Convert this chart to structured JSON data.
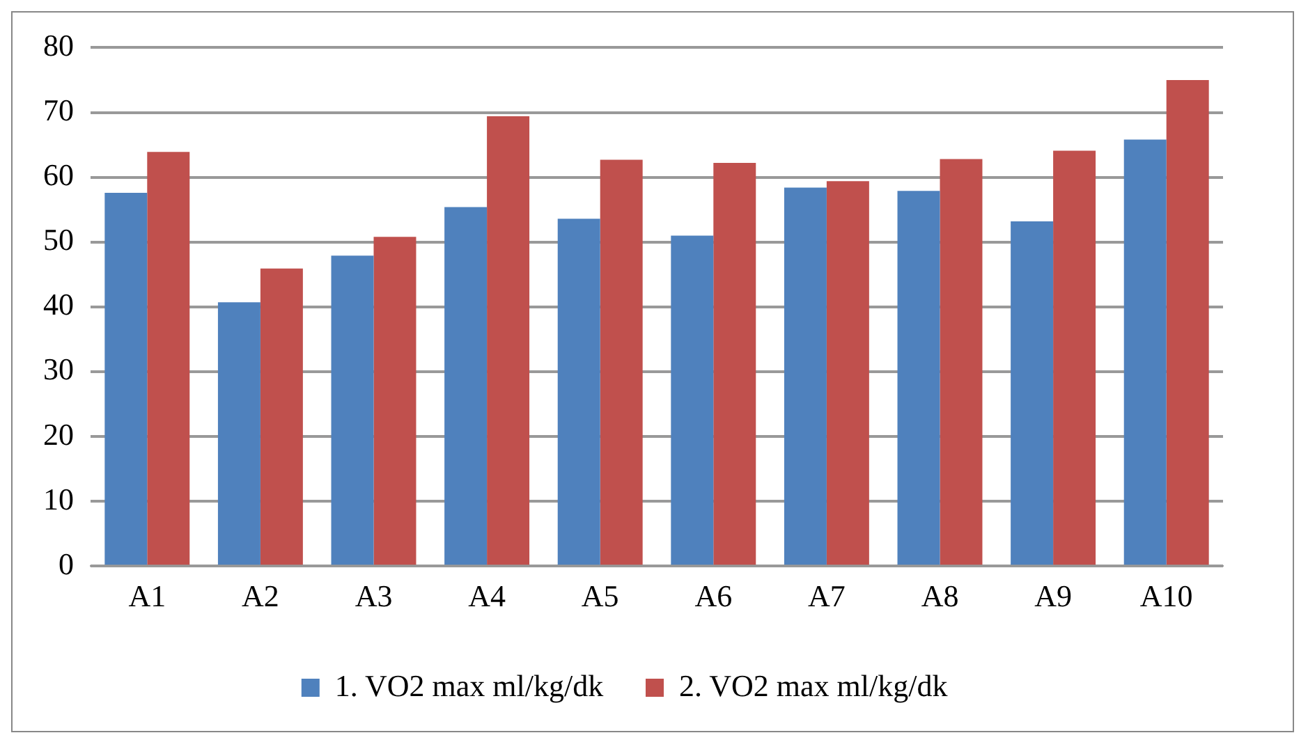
{
  "chart_data": {
    "type": "bar",
    "categories": [
      "A1",
      "A2",
      "A3",
      "A4",
      "A5",
      "A6",
      "A7",
      "A8",
      "A9",
      "A10"
    ],
    "series": [
      {
        "name": "1. VO2 max ml/kg/dk",
        "color": "#4f81bd",
        "values": [
          57.6,
          40.7,
          47.9,
          55.4,
          53.6,
          51.0,
          58.4,
          57.9,
          53.2,
          65.8
        ]
      },
      {
        "name": "2. VO2 max ml/kg/dk",
        "color": "#c0504d",
        "values": [
          63.9,
          45.9,
          50.8,
          69.4,
          62.7,
          62.2,
          59.4,
          62.8,
          64.1,
          75.0
        ]
      }
    ],
    "ylim": [
      0,
      80
    ],
    "yticks": [
      0,
      10,
      20,
      30,
      40,
      50,
      60,
      70,
      80
    ],
    "grid": "y",
    "legend": "bottom"
  }
}
